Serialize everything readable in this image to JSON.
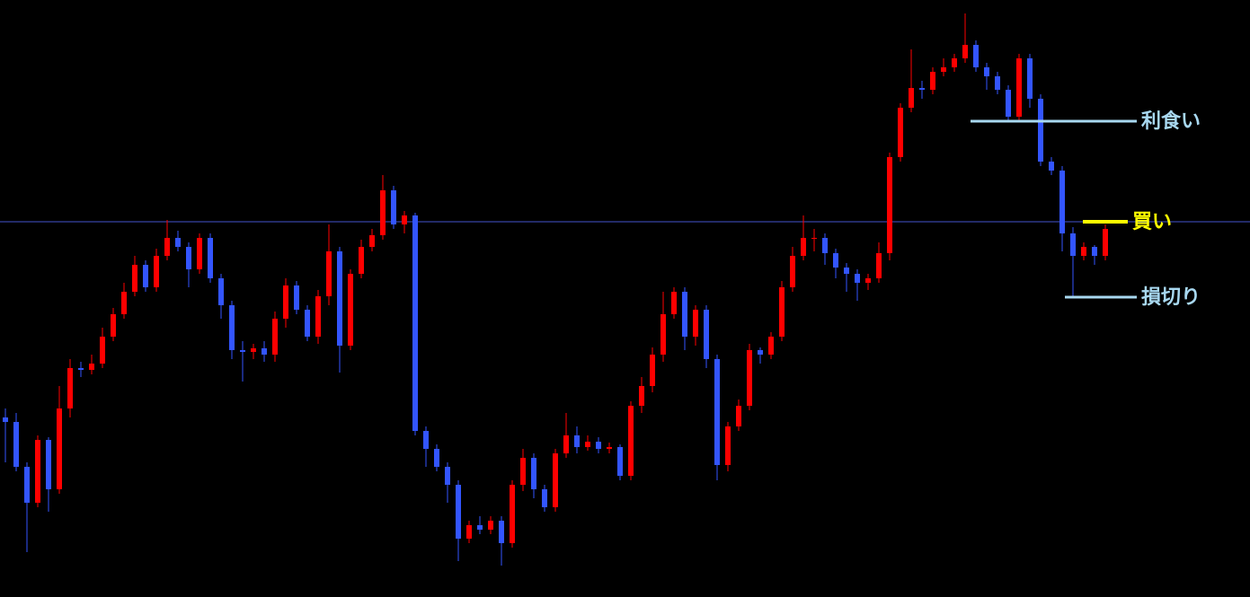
{
  "chart_data": {
    "type": "candlestick",
    "ylim": [
      0,
      665
    ],
    "bull_color": "#ff0000",
    "bear_color": "#3355ff",
    "reference_line": {
      "value": 418,
      "color": "#4455cc"
    },
    "annotations": [
      {
        "text": "利食い",
        "value": 530,
        "color": "#a8d8f0"
      },
      {
        "text": "買い",
        "value": 418,
        "color": "#ffff00"
      },
      {
        "text": "損切り",
        "value": 334,
        "color": "#a8d8f0"
      }
    ],
    "open": [
      200,
      195,
      145,
      105,
      175,
      120,
      210,
      255,
      253,
      260,
      290,
      315,
      340,
      370,
      345,
      380,
      400,
      390,
      365,
      400,
      355,
      325,
      275,
      273,
      277,
      270,
      310,
      347,
      320,
      290,
      335,
      385,
      280,
      360,
      390,
      403,
      453,
      415,
      425,
      185,
      165,
      145,
      125,
      65,
      80,
      75,
      85,
      60,
      125,
      155,
      120,
      100,
      160,
      180,
      167,
      173,
      165,
      167,
      135,
      213,
      235,
      270,
      315,
      340,
      290,
      320,
      265,
      147,
      190,
      213,
      275,
      270,
      290,
      345,
      380,
      400,
      400,
      383,
      367,
      360,
      350,
      355,
      383,
      490,
      545,
      567,
      565,
      585,
      590,
      600,
      615,
      590,
      580,
      565,
      535,
      600,
      555,
      485,
      475,
      405,
      380,
      390,
      380
    ],
    "high": [
      210,
      205,
      150,
      180,
      178,
      235,
      265,
      262,
      270,
      300,
      322,
      350,
      380,
      375,
      388,
      420,
      408,
      395,
      405,
      405,
      360,
      330,
      285,
      282,
      285,
      318,
      355,
      352,
      325,
      342,
      415,
      390,
      365,
      398,
      410,
      470,
      458,
      430,
      428,
      190,
      170,
      150,
      130,
      85,
      90,
      90,
      90,
      130,
      165,
      160,
      125,
      165,
      205,
      190,
      180,
      178,
      172,
      170,
      218,
      245,
      278,
      340,
      345,
      345,
      325,
      325,
      270,
      195,
      220,
      282,
      278,
      295,
      352,
      390,
      425,
      410,
      405,
      388,
      372,
      365,
      360,
      395,
      495,
      550,
      610,
      575,
      590,
      600,
      605,
      650,
      620,
      595,
      585,
      570,
      605,
      605,
      560,
      490,
      480,
      412,
      395,
      392,
      415
    ],
    "low": [
      150,
      140,
      50,
      100,
      95,
      115,
      200,
      245,
      248,
      255,
      285,
      310,
      335,
      340,
      340,
      375,
      385,
      345,
      360,
      350,
      310,
      265,
      240,
      265,
      262,
      262,
      300,
      315,
      285,
      282,
      325,
      250,
      275,
      355,
      385,
      398,
      410,
      405,
      180,
      145,
      140,
      105,
      40,
      60,
      70,
      70,
      35,
      55,
      118,
      110,
      95,
      95,
      155,
      160,
      163,
      160,
      160,
      130,
      130,
      205,
      228,
      262,
      310,
      275,
      280,
      255,
      130,
      140,
      185,
      208,
      260,
      265,
      285,
      340,
      375,
      385,
      370,
      355,
      340,
      330,
      342,
      350,
      375,
      485,
      540,
      555,
      560,
      580,
      585,
      595,
      585,
      565,
      560,
      530,
      530,
      545,
      480,
      470,
      385,
      335,
      375,
      370,
      375
    ],
    "close": [
      195,
      145,
      105,
      175,
      120,
      210,
      255,
      253,
      260,
      290,
      315,
      340,
      370,
      345,
      380,
      400,
      390,
      365,
      400,
      355,
      325,
      275,
      273,
      277,
      270,
      310,
      347,
      320,
      290,
      335,
      385,
      280,
      360,
      390,
      403,
      453,
      415,
      425,
      185,
      165,
      145,
      125,
      65,
      80,
      75,
      85,
      60,
      125,
      155,
      120,
      100,
      160,
      180,
      167,
      173,
      165,
      167,
      135,
      213,
      235,
      270,
      315,
      340,
      290,
      320,
      265,
      147,
      190,
      213,
      275,
      270,
      290,
      345,
      380,
      400,
      400,
      383,
      367,
      360,
      350,
      355,
      383,
      490,
      545,
      567,
      565,
      585,
      590,
      600,
      615,
      590,
      580,
      565,
      535,
      600,
      555,
      485,
      475,
      405,
      380,
      390,
      380,
      410
    ]
  }
}
